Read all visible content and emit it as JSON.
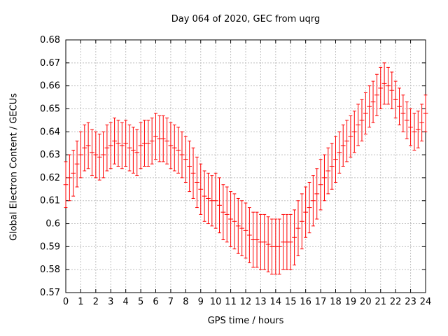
{
  "figure": {
    "title": "Day 064 of 2020, GEC from uqrg",
    "xlabel": "GPS time / hours",
    "ylabel": "Global Electron Content / GECUs",
    "background_color": "#ffffff",
    "frame_color": "#000000",
    "grid_color": "#c0c0c0"
  },
  "chart_data": {
    "type": "scatter",
    "style": "errorbars",
    "title": "Day 064 of 2020, GEC from uqrg",
    "xlabel": "GPS time / hours",
    "ylabel": "Global Electron Content / GECUs",
    "series_name": "GEC from uqrg",
    "series_color": "#ff0000",
    "grid": true,
    "legend": "none",
    "xlim": [
      0,
      24
    ],
    "ylim": [
      0.57,
      0.68
    ],
    "x_ticks": [
      0,
      1,
      2,
      3,
      4,
      5,
      6,
      7,
      8,
      9,
      10,
      11,
      12,
      13,
      14,
      15,
      16,
      17,
      18,
      19,
      20,
      21,
      22,
      23,
      24
    ],
    "y_ticks": [
      0.57,
      0.58,
      0.59,
      0.6,
      0.61,
      0.62,
      0.63,
      0.64,
      0.65,
      0.66,
      0.67,
      0.68
    ],
    "y_tick_labels": [
      "0.57",
      "0.58",
      "0.59",
      "0.6",
      "0.61",
      "0.62",
      "0.63",
      "0.64",
      "0.65",
      "0.66",
      "0.67",
      "0.68"
    ],
    "x": [
      0,
      0.25,
      0.5,
      0.75,
      1,
      1.25,
      1.5,
      1.75,
      2,
      2.25,
      2.5,
      2.75,
      3,
      3.25,
      3.5,
      3.75,
      4,
      4.25,
      4.5,
      4.75,
      5,
      5.25,
      5.5,
      5.75,
      6,
      6.25,
      6.5,
      6.75,
      7,
      7.25,
      7.5,
      7.75,
      8,
      8.25,
      8.5,
      8.75,
      9,
      9.25,
      9.5,
      9.75,
      10,
      10.25,
      10.5,
      10.75,
      11,
      11.25,
      11.5,
      11.75,
      12,
      12.25,
      12.5,
      12.75,
      13,
      13.25,
      13.5,
      13.75,
      14,
      14.25,
      14.5,
      14.75,
      15,
      15.25,
      15.5,
      15.75,
      16,
      16.25,
      16.5,
      16.75,
      17,
      17.25,
      17.5,
      17.75,
      18,
      18.25,
      18.5,
      18.75,
      19,
      19.25,
      19.5,
      19.75,
      20,
      20.25,
      20.5,
      20.75,
      21,
      21.25,
      21.5,
      21.75,
      22,
      22.25,
      22.5,
      22.75,
      23,
      23.25,
      23.5,
      23.75,
      24
    ],
    "y": [
      0.617,
      0.62,
      0.622,
      0.626,
      0.63,
      0.633,
      0.634,
      0.631,
      0.63,
      0.629,
      0.63,
      0.633,
      0.634,
      0.636,
      0.635,
      0.634,
      0.635,
      0.633,
      0.632,
      0.631,
      0.634,
      0.635,
      0.635,
      0.636,
      0.638,
      0.637,
      0.637,
      0.636,
      0.634,
      0.633,
      0.632,
      0.63,
      0.628,
      0.625,
      0.622,
      0.618,
      0.615,
      0.612,
      0.611,
      0.61,
      0.61,
      0.608,
      0.605,
      0.604,
      0.602,
      0.601,
      0.599,
      0.598,
      0.597,
      0.595,
      0.593,
      0.593,
      0.592,
      0.592,
      0.591,
      0.59,
      0.59,
      0.59,
      0.592,
      0.592,
      0.592,
      0.594,
      0.598,
      0.601,
      0.605,
      0.607,
      0.61,
      0.613,
      0.617,
      0.62,
      0.623,
      0.625,
      0.628,
      0.631,
      0.634,
      0.636,
      0.638,
      0.64,
      0.643,
      0.645,
      0.648,
      0.651,
      0.653,
      0.656,
      0.659,
      0.661,
      0.66,
      0.658,
      0.654,
      0.651,
      0.648,
      0.645,
      0.642,
      0.64,
      0.641,
      0.644,
      0.648
    ],
    "yerr": [
      0.01,
      0.01,
      0.01,
      0.01,
      0.01,
      0.01,
      0.01,
      0.01,
      0.01,
      0.01,
      0.01,
      0.01,
      0.01,
      0.01,
      0.01,
      0.01,
      0.01,
      0.01,
      0.01,
      0.01,
      0.01,
      0.01,
      0.01,
      0.01,
      0.01,
      0.01,
      0.01,
      0.01,
      0.01,
      0.01,
      0.01,
      0.01,
      0.01,
      0.011,
      0.011,
      0.011,
      0.011,
      0.011,
      0.011,
      0.011,
      0.012,
      0.012,
      0.012,
      0.012,
      0.012,
      0.012,
      0.012,
      0.012,
      0.012,
      0.012,
      0.012,
      0.012,
      0.012,
      0.012,
      0.012,
      0.012,
      0.012,
      0.012,
      0.012,
      0.012,
      0.012,
      0.012,
      0.012,
      0.012,
      0.011,
      0.011,
      0.011,
      0.011,
      0.011,
      0.01,
      0.01,
      0.01,
      0.01,
      0.009,
      0.009,
      0.009,
      0.009,
      0.009,
      0.009,
      0.009,
      0.009,
      0.009,
      0.009,
      0.009,
      0.009,
      0.009,
      0.008,
      0.008,
      0.008,
      0.008,
      0.008,
      0.008,
      0.008,
      0.008,
      0.008,
      0.008,
      0.008
    ]
  }
}
